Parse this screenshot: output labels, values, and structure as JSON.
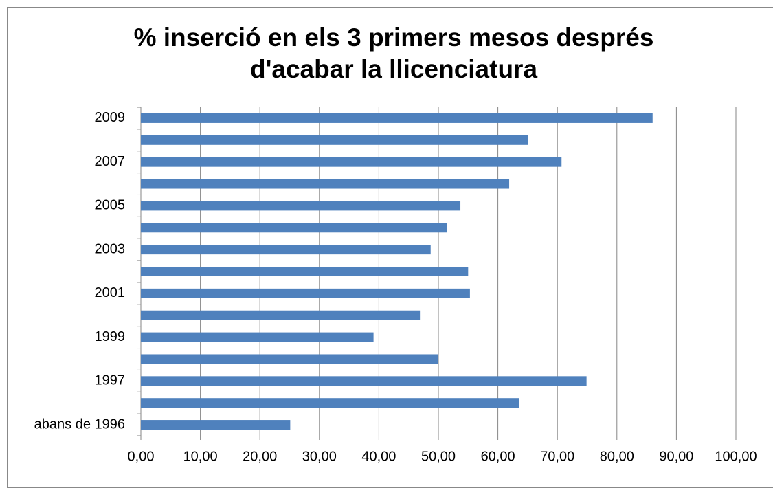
{
  "chart_data": {
    "type": "barh",
    "title": "% inserció en els 3 primers mesos després d'acabar la llicenciatura",
    "categories": [
      "abans de 1996",
      null,
      "1997",
      null,
      "1999",
      null,
      "2001",
      null,
      "2003",
      null,
      "2005",
      null,
      "2007",
      null,
      "2009"
    ],
    "values": [
      25.1,
      63.6,
      74.9,
      50.0,
      39.1,
      46.9,
      55.3,
      55.0,
      48.7,
      51.5,
      53.7,
      61.9,
      70.7,
      65.1,
      86.0
    ],
    "color": "#4f81bd",
    "xlim": [
      0,
      100
    ],
    "xticks": [
      {
        "value": 0,
        "label": "0,00"
      },
      {
        "value": 10,
        "label": "10,00"
      },
      {
        "value": 20,
        "label": "20,00"
      },
      {
        "value": 30,
        "label": "30,00"
      },
      {
        "value": 40,
        "label": "40,00"
      },
      {
        "value": 50,
        "label": "50,00"
      },
      {
        "value": 60,
        "label": "60,00"
      },
      {
        "value": 70,
        "label": "70,00"
      },
      {
        "value": 80,
        "label": "80,00"
      },
      {
        "value": 90,
        "label": "90,00"
      },
      {
        "value": 100,
        "label": "100,00"
      }
    ],
    "grid": true
  }
}
